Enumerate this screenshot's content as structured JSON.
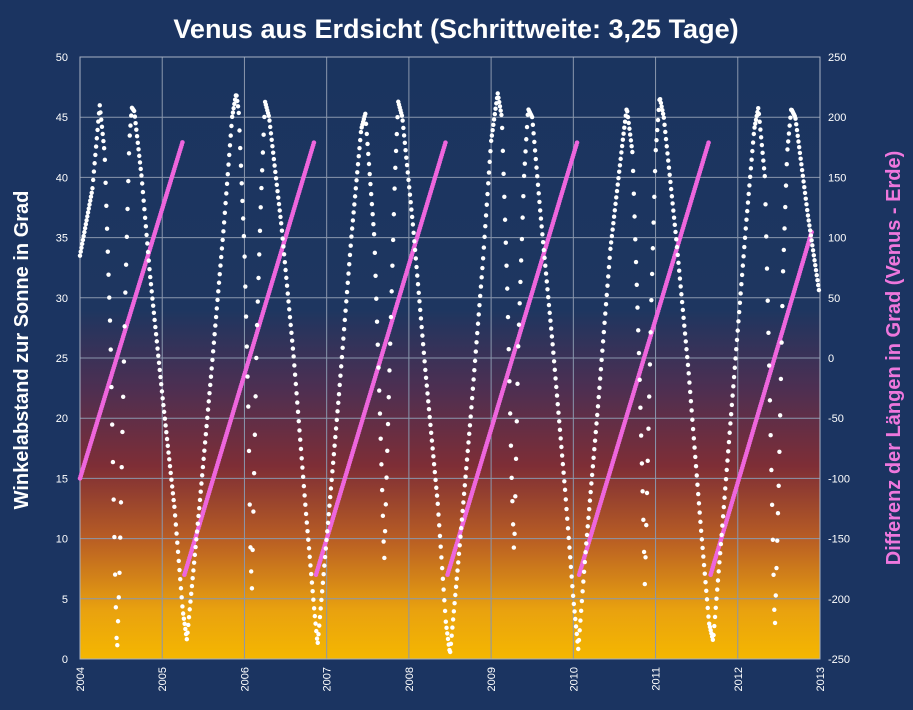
{
  "chart_data": {
    "type": "scatter",
    "title": "Venus aus Erdsicht (Schrittweite: 3,25 Tage)",
    "ylabel": "Winkelabstand  zur  Sonne  in  Grad",
    "y2label": "Differenz  der  Längen  in  Grad  (Venus - Erde)",
    "x_ticks": [
      "2004",
      "2005",
      "2006",
      "2007",
      "2008",
      "2009",
      "2010",
      "2011",
      "2012",
      "2013"
    ],
    "xlim": [
      2004,
      2013
    ],
    "ylim": [
      0,
      50
    ],
    "y_ticks": [
      0,
      5,
      10,
      15,
      20,
      25,
      30,
      35,
      40,
      45,
      50
    ],
    "y2lim": [
      -250,
      250
    ],
    "y2_ticks": [
      -250,
      -200,
      -150,
      -100,
      -50,
      0,
      50,
      100,
      150,
      200,
      250
    ],
    "grid": true,
    "colors": {
      "elongation": "#ffffff",
      "longitude_difference": "#ee66dd",
      "y2label": "#ee77dd"
    },
    "series": [
      {
        "axis": "left",
        "step_days": 3.25,
        "x_start": 2004.0,
        "anchors": [
          [
            2004.0,
            33.5
          ],
          [
            2004.15,
            39.0
          ],
          [
            2004.24,
            46.0
          ],
          [
            2004.3,
            42.0
          ],
          [
            2004.37,
            27.0
          ],
          [
            2004.43,
            6.0
          ],
          [
            2004.45,
            0.3
          ],
          [
            2004.48,
            7.0
          ],
          [
            2004.55,
            30.0
          ],
          [
            2004.6,
            43.0
          ],
          [
            2004.63,
            45.8
          ],
          [
            2004.66,
            45.5
          ],
          [
            2004.75,
            40.0
          ],
          [
            2004.85,
            32.0
          ],
          [
            2005.0,
            22.0
          ],
          [
            2005.15,
            12.5
          ],
          [
            2005.25,
            4.0
          ],
          [
            2005.3,
            1.6
          ],
          [
            2005.45,
            12.5
          ],
          [
            2005.6,
            24.0
          ],
          [
            2005.75,
            36.0
          ],
          [
            2005.85,
            45.0
          ],
          [
            2005.9,
            47.0
          ],
          [
            2005.93,
            45.5
          ],
          [
            2006.0,
            34.0
          ],
          [
            2006.05,
            20.0
          ],
          [
            2006.07,
            10.0
          ],
          [
            2006.09,
            5.5
          ],
          [
            2006.15,
            27.0
          ],
          [
            2006.2,
            38.0
          ],
          [
            2006.25,
            46.3
          ],
          [
            2006.3,
            45.0
          ],
          [
            2006.45,
            36.0
          ],
          [
            2006.6,
            25.0
          ],
          [
            2006.75,
            12.0
          ],
          [
            2006.85,
            4.0
          ],
          [
            2006.89,
            1.2
          ],
          [
            2007.0,
            10.0
          ],
          [
            2007.15,
            22.0
          ],
          [
            2007.3,
            35.0
          ],
          [
            2007.42,
            44.0
          ],
          [
            2007.47,
            45.3
          ],
          [
            2007.58,
            35.0
          ],
          [
            2007.65,
            20.0
          ],
          [
            2007.7,
            8.0
          ],
          [
            2007.78,
            28.0
          ],
          [
            2007.83,
            40.0
          ],
          [
            2007.87,
            46.3
          ],
          [
            2007.92,
            45.0
          ],
          [
            2008.05,
            36.0
          ],
          [
            2008.2,
            24.0
          ],
          [
            2008.35,
            13.0
          ],
          [
            2008.45,
            3.0
          ],
          [
            2008.5,
            0.4
          ],
          [
            2008.6,
            8.0
          ],
          [
            2008.75,
            20.0
          ],
          [
            2008.9,
            33.0
          ],
          [
            2009.0,
            43.0
          ],
          [
            2009.08,
            47.0
          ],
          [
            2009.13,
            45.0
          ],
          [
            2009.2,
            30.0
          ],
          [
            2009.25,
            15.0
          ],
          [
            2009.28,
            8.5
          ],
          [
            2009.33,
            26.0
          ],
          [
            2009.4,
            40.0
          ],
          [
            2009.45,
            45.7
          ],
          [
            2009.5,
            45.0
          ],
          [
            2009.6,
            37.0
          ],
          [
            2009.75,
            26.0
          ],
          [
            2009.9,
            14.0
          ],
          [
            2010.0,
            5.0
          ],
          [
            2010.06,
            0.8
          ],
          [
            2010.15,
            9.0
          ],
          [
            2010.3,
            21.0
          ],
          [
            2010.45,
            34.0
          ],
          [
            2010.6,
            43.0
          ],
          [
            2010.65,
            45.8
          ],
          [
            2010.72,
            42.0
          ],
          [
            2010.8,
            25.0
          ],
          [
            2010.85,
            12.0
          ],
          [
            2010.87,
            6.0
          ],
          [
            2010.95,
            30.0
          ],
          [
            2011.0,
            42.0
          ],
          [
            2011.05,
            46.7
          ],
          [
            2011.1,
            45.0
          ],
          [
            2011.25,
            35.0
          ],
          [
            2011.4,
            24.0
          ],
          [
            2011.55,
            11.0
          ],
          [
            2011.65,
            3.0
          ],
          [
            2011.7,
            1.5
          ],
          [
            2011.8,
            10.0
          ],
          [
            2011.95,
            23.0
          ],
          [
            2012.1,
            36.0
          ],
          [
            2012.2,
            44.0
          ],
          [
            2012.25,
            45.8
          ],
          [
            2012.33,
            40.0
          ],
          [
            2012.38,
            25.0
          ],
          [
            2012.42,
            12.0
          ],
          [
            2012.45,
            2.2
          ],
          [
            2012.5,
            15.0
          ],
          [
            2012.55,
            32.0
          ],
          [
            2012.6,
            42.0
          ],
          [
            2012.65,
            45.7
          ],
          [
            2012.7,
            45.0
          ],
          [
            2012.85,
            37.0
          ],
          [
            2012.99,
            30.5
          ]
        ]
      },
      {
        "axis": "right",
        "step_days": 3.25,
        "segments": [
          [
            [
              2004.0,
              -100
            ],
            [
              2005.25,
              180
            ]
          ],
          [
            [
              2005.27,
              -180
            ],
            [
              2006.85,
              180
            ]
          ],
          [
            [
              2006.87,
              -180
            ],
            [
              2008.45,
              180
            ]
          ],
          [
            [
              2008.47,
              -180
            ],
            [
              2010.05,
              180
            ]
          ],
          [
            [
              2010.07,
              -180
            ],
            [
              2011.65,
              180
            ]
          ],
          [
            [
              2011.67,
              -180
            ],
            [
              2012.9,
              105
            ]
          ]
        ]
      }
    ]
  }
}
